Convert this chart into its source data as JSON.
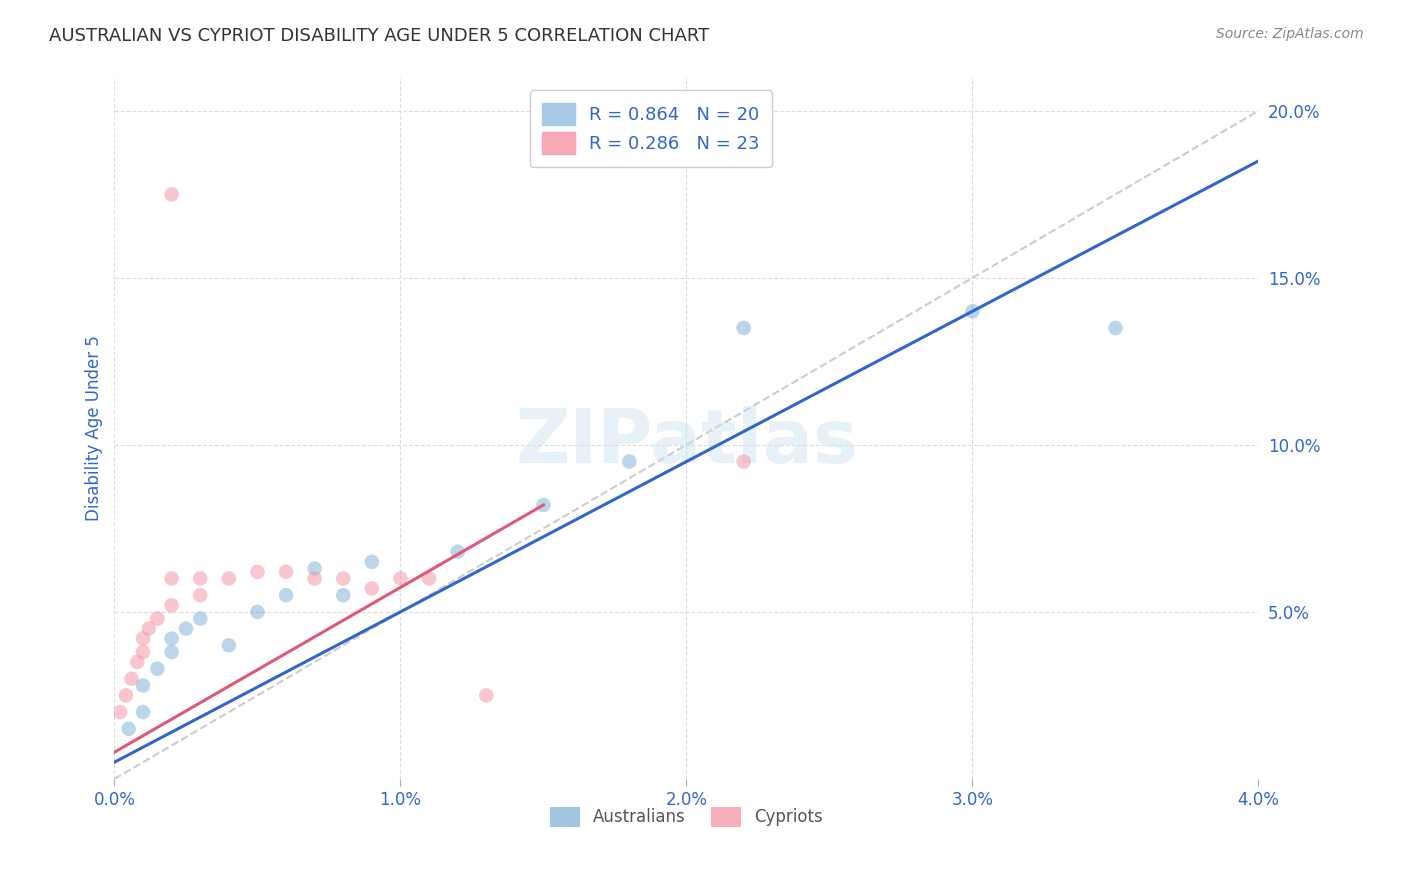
{
  "title": "AUSTRALIAN VS CYPRIOT DISABILITY AGE UNDER 5 CORRELATION CHART",
  "source": "Source: ZipAtlas.com",
  "ylabel_label": "Disability Age Under 5",
  "watermark": "ZIPatlas",
  "aus_color": "#7bafd4",
  "cyp_color": "#f48fa0",
  "aus_line_color": "#3366cc",
  "cyp_line_color": "#e05878",
  "diag_color": "#cccccc",
  "xmin": 0.0,
  "xmax": 0.04,
  "ymin": 0.0,
  "ymax": 0.21,
  "x_ticks": [
    0.0,
    0.01,
    0.02,
    0.03,
    0.04
  ],
  "x_tick_labels": [
    "0.0%",
    "1.0%",
    "2.0%",
    "3.0%",
    "4.0%"
  ],
  "y_ticks": [
    0.0,
    0.05,
    0.1,
    0.15,
    0.2
  ],
  "y_tick_labels": [
    "",
    "5.0%",
    "10.0%",
    "15.0%",
    "20.0%"
  ],
  "aus_x": [
    0.0005,
    0.001,
    0.001,
    0.0015,
    0.002,
    0.002,
    0.0025,
    0.003,
    0.004,
    0.005,
    0.006,
    0.007,
    0.008,
    0.009,
    0.012,
    0.015,
    0.018,
    0.022,
    0.03,
    0.035
  ],
  "aus_y": [
    0.015,
    0.02,
    0.028,
    0.033,
    0.038,
    0.042,
    0.045,
    0.048,
    0.04,
    0.05,
    0.055,
    0.063,
    0.055,
    0.065,
    0.068,
    0.082,
    0.095,
    0.135,
    0.14,
    0.135
  ],
  "cyp_x": [
    0.0002,
    0.0004,
    0.0006,
    0.0008,
    0.001,
    0.001,
    0.0012,
    0.0015,
    0.002,
    0.002,
    0.003,
    0.003,
    0.004,
    0.005,
    0.006,
    0.007,
    0.008,
    0.009,
    0.01,
    0.011,
    0.013,
    0.022,
    0.002
  ],
  "cyp_y": [
    0.02,
    0.025,
    0.03,
    0.035,
    0.038,
    0.042,
    0.045,
    0.048,
    0.052,
    0.06,
    0.055,
    0.06,
    0.06,
    0.062,
    0.062,
    0.06,
    0.06,
    0.057,
    0.06,
    0.06,
    0.025,
    0.095,
    0.175
  ],
  "aus_line_x": [
    0.0,
    0.04
  ],
  "aus_line_y": [
    0.005,
    0.185
  ],
  "cyp_line_x": [
    0.0,
    0.015
  ],
  "cyp_line_y": [
    0.008,
    0.082
  ],
  "background_color": "#ffffff",
  "grid_color": "#dddddd",
  "title_color": "#333333",
  "axis_label_color": "#3366cc",
  "tick_label_color": "#3366cc",
  "marker_size": 110,
  "marker_alpha": 0.5,
  "line_width": 2.2
}
